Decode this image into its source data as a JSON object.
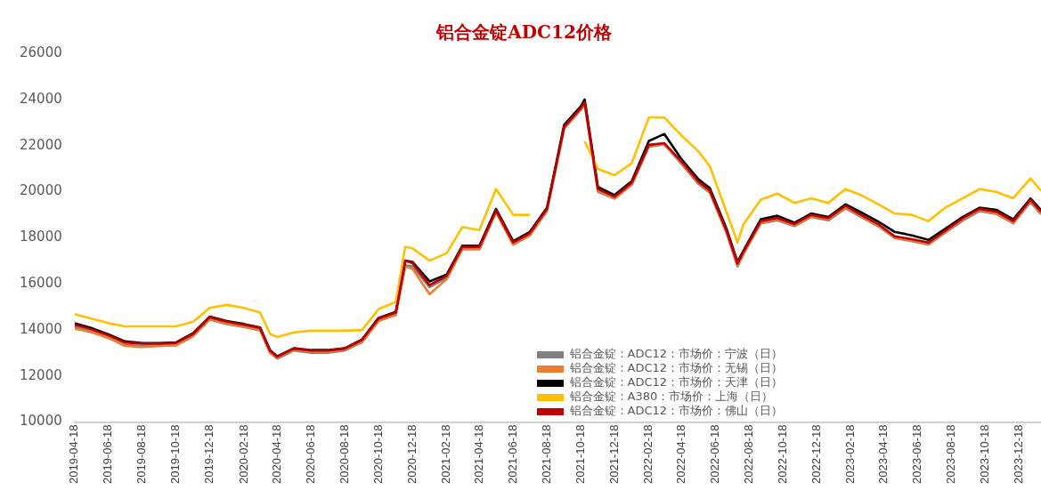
{
  "chart_data": {
    "type": "line",
    "title": "铝合金锭ADC12价格",
    "x": [
      "2019-04-18",
      "2019-05-18",
      "2019-06-18",
      "2019-07-18",
      "2019-08-18",
      "2019-09-18",
      "2019-10-18",
      "2019-11-18",
      "2019-12-18",
      "2020-01-18",
      "2020-02-18",
      "2020-03-18",
      "2020-04-05",
      "2020-04-18",
      "2020-05-18",
      "2020-06-18",
      "2020-07-18",
      "2020-08-18",
      "2020-09-18",
      "2020-10-18",
      "2020-11-18",
      "2020-12-05",
      "2020-12-18",
      "2021-01-18",
      "2021-02-18",
      "2021-03-18",
      "2021-04-18",
      "2021-05-18",
      "2021-06-18",
      "2021-07-18",
      "2021-08-18",
      "2021-09-18",
      "2021-10-18",
      "2021-10-25",
      "2021-11-18",
      "2021-12-18",
      "2022-01-18",
      "2022-02-18",
      "2022-03-18",
      "2022-04-18",
      "2022-05-18",
      "2022-06-08",
      "2022-07-08",
      "2022-07-28",
      "2022-08-08",
      "2022-09-08",
      "2022-10-08",
      "2022-11-08",
      "2022-12-08",
      "2023-01-08",
      "2023-02-08",
      "2023-03-08",
      "2023-04-08",
      "2023-05-08",
      "2023-06-08",
      "2023-07-08",
      "2023-08-08",
      "2023-09-08",
      "2023-10-08",
      "2023-11-08",
      "2023-12-08",
      "2024-01-08",
      "2024-01-27"
    ],
    "series": [
      {
        "name": "铝合金锭：ADC12：市场价：宁波（日）",
        "color": "#808080",
        "values": [
          14120,
          13920,
          13660,
          13350,
          13300,
          13300,
          13330,
          13720,
          14450,
          14250,
          14120,
          13980,
          13000,
          12750,
          13100,
          13000,
          13000,
          13100,
          13460,
          14390,
          14650,
          16800,
          16750,
          15850,
          16250,
          17500,
          17500,
          19100,
          17700,
          18100,
          19150,
          22720,
          23550,
          23800,
          20000,
          19700,
          20300,
          21950,
          22050,
          21200,
          20350,
          19950,
          18220,
          16750,
          17300,
          18620,
          18750,
          18500,
          18900,
          18750,
          19280,
          18900,
          18500,
          17980,
          17850,
          17700,
          18230,
          18750,
          19150,
          19020,
          18620,
          19550,
          19020
        ]
      },
      {
        "name": "铝合金锭：ADC12：市场价：无锡（日）",
        "color": "#ed7d31",
        "values": [
          14050,
          13900,
          13650,
          13300,
          13250,
          13300,
          13330,
          13720,
          14480,
          14280,
          14150,
          14000,
          13000,
          12800,
          13150,
          13050,
          13050,
          13150,
          13480,
          14400,
          14650,
          16750,
          16650,
          15550,
          16200,
          17500,
          17500,
          19120,
          17700,
          18100,
          19200,
          22780,
          23600,
          23850,
          20050,
          19700,
          20320,
          22000,
          22050,
          21250,
          20400,
          20000,
          18250,
          16800,
          17350,
          18650,
          18800,
          18530,
          18930,
          18800,
          19320,
          18930,
          18530,
          18000,
          17880,
          17730,
          18250,
          18800,
          19200,
          19050,
          18650,
          19600,
          19050
        ]
      },
      {
        "name": "铝合金锭：ADC12：市场价：天津（日）",
        "color": "#000000",
        "values": [
          14280,
          14080,
          13800,
          13500,
          13420,
          13420,
          13450,
          13850,
          14570,
          14380,
          14250,
          14100,
          13120,
          12850,
          13200,
          13120,
          13120,
          13200,
          13580,
          14520,
          14780,
          17000,
          16950,
          16100,
          16400,
          17650,
          17650,
          19250,
          17850,
          18250,
          19300,
          22900,
          23700,
          24000,
          20200,
          19850,
          20450,
          22200,
          22500,
          21400,
          20550,
          20150,
          18400,
          16950,
          17450,
          18800,
          18950,
          18650,
          19050,
          18900,
          19450,
          19100,
          18700,
          18250,
          18100,
          17900,
          18400,
          18900,
          19300,
          19200,
          18800,
          19700,
          19200
        ]
      },
      {
        "name": "铝合金锭：A380：市场价：上海（日）",
        "color": "#ffc000",
        "values": [
          14680,
          14490,
          14290,
          14150,
          14150,
          14150,
          14150,
          14350,
          14950,
          15080,
          14950,
          14750,
          13820,
          13690,
          13890,
          13960,
          13960,
          13960,
          13990,
          14900,
          15210,
          17600,
          17540,
          17000,
          17330,
          18460,
          18330,
          20110,
          18990,
          18990,
          null,
          null,
          null,
          22180,
          20980,
          20710,
          21230,
          23220,
          23220,
          22430,
          21760,
          21100,
          19120,
          17790,
          18590,
          19650,
          19910,
          19510,
          19710,
          19510,
          20110,
          19850,
          19450,
          19050,
          18990,
          18720,
          19320,
          19710,
          20110,
          19980,
          19710,
          20570,
          20040
        ]
      },
      {
        "name": "铝合金锭：ADC12：市场价：佛山（日）",
        "color": "#c00000",
        "values": [
          14220,
          14020,
          13760,
          13450,
          13400,
          13400,
          13430,
          13820,
          14550,
          14350,
          14220,
          14080,
          13100,
          12830,
          13190,
          13100,
          13100,
          13190,
          13560,
          14490,
          14750,
          17000,
          16900,
          15940,
          16340,
          17600,
          17600,
          19180,
          17790,
          18190,
          19250,
          22820,
          23620,
          23890,
          20110,
          19780,
          20380,
          22030,
          22100,
          21300,
          20440,
          20050,
          18320,
          16870,
          17400,
          18720,
          18850,
          18590,
          18990,
          18850,
          19380,
          18990,
          18590,
          18060,
          17930,
          17790,
          18320,
          18850,
          19250,
          19120,
          18720,
          19650,
          19120
        ]
      }
    ],
    "xlim": [
      "2019-04-18",
      "2024-01-27"
    ],
    "xticks": [
      "2019-04-18",
      "2019-06-18",
      "2019-08-18",
      "2019-10-18",
      "2019-12-18",
      "2020-02-18",
      "2020-04-18",
      "2020-06-18",
      "2020-08-18",
      "2020-10-18",
      "2020-12-18",
      "2021-02-18",
      "2021-04-18",
      "2021-06-18",
      "2021-08-18",
      "2021-10-18",
      "2021-12-18",
      "2022-02-18",
      "2022-04-18",
      "2022-06-18",
      "2022-08-18",
      "2022-10-18",
      "2022-12-18",
      "2023-02-18",
      "2023-04-18",
      "2023-06-18",
      "2023-08-18",
      "2023-10-18",
      "2023-12-18"
    ],
    "ylim": [
      10000,
      26000
    ],
    "yticks": [
      10000,
      12000,
      14000,
      16000,
      18000,
      20000,
      22000,
      24000,
      26000
    ],
    "legend": "bottom"
  }
}
